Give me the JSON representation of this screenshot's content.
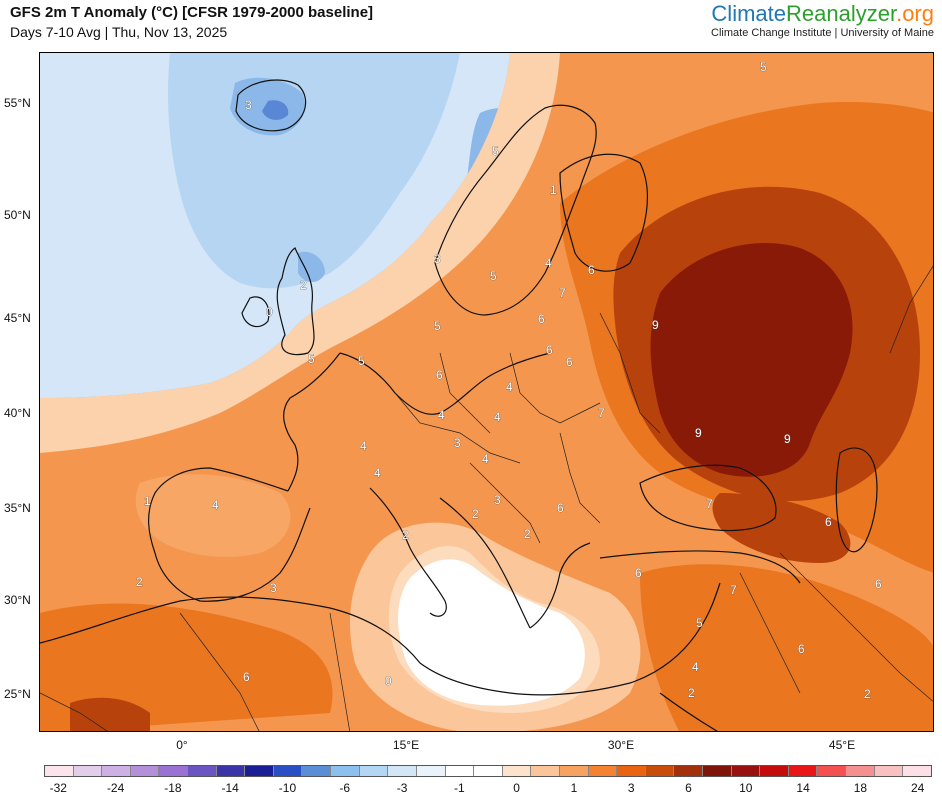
{
  "header": {
    "title": "GFS 2m T Anomaly (°C) [CFSR 1979-2000 baseline]",
    "subtitle": "Days 7-10 Avg | Thu, Nov 13, 2025"
  },
  "brand": {
    "name_part1": "Climate",
    "name_part2": "Reanalyzer",
    "name_part3": ".org",
    "subtitle": "Climate Change Institute | University of Maine"
  },
  "axes": {
    "lat_labels": [
      "55°N",
      "50°N",
      "45°N",
      "40°N",
      "35°N",
      "30°N",
      "25°N"
    ],
    "lon_labels": [
      "0°",
      "15°E",
      "30°E",
      "45°E"
    ]
  },
  "colorbar": {
    "colors": [
      "#fde4ec",
      "#e2cdeb",
      "#cdb1e4",
      "#b48fdc",
      "#9a72d4",
      "#6a55c2",
      "#3a34a8",
      "#1a1f96",
      "#2a4fc4",
      "#5a8ed6",
      "#8cc0ee",
      "#b2d6f4",
      "#d2e6f7",
      "#eaf2fb",
      "#ffffff",
      "#ffffff",
      "#fde3cc",
      "#fbc59a",
      "#f8a262",
      "#f48230",
      "#e86410",
      "#c84d0a",
      "#a2300a",
      "#7e1508",
      "#981010",
      "#c40c0c",
      "#e81616",
      "#f45050",
      "#f49090",
      "#f8c0c0",
      "#fde0e6"
    ],
    "labels": [
      "-32",
      "-24",
      "-18",
      "-14",
      "-10",
      "-6",
      "-3",
      "-1",
      "0",
      "1",
      "3",
      "6",
      "10",
      "14",
      "18",
      "24",
      "32"
    ]
  },
  "map": {
    "colors": {
      "ocean_blue": "#d4e6f7",
      "light_blue": "#b6d5f2",
      "mid_blue": "#8bb8e8",
      "deep_blue": "#5a86d6",
      "white": "#ffffff",
      "pale_orange": "#fcd2ac",
      "light_orange": "#f9b57d",
      "orange": "#f5964e",
      "dark_orange": "#ea7620",
      "red_brown": "#b8420c",
      "maroon": "#8a1a08"
    },
    "contour_labels": [
      "3",
      "2",
      "0",
      "5",
      "5",
      "1",
      "3",
      "5",
      "4",
      "6",
      "7",
      "6",
      "5",
      "9",
      "5",
      "5",
      "6",
      "6",
      "6",
      "4",
      "4",
      "7",
      "4",
      "3",
      "4",
      "4",
      "4",
      "9",
      "9",
      "1",
      "4",
      "6",
      "7",
      "2",
      "3",
      "2",
      "2",
      "6",
      "6",
      "2",
      "3",
      "6",
      "7",
      "6",
      "5",
      "4",
      "2",
      "6",
      "0",
      "2"
    ]
  }
}
